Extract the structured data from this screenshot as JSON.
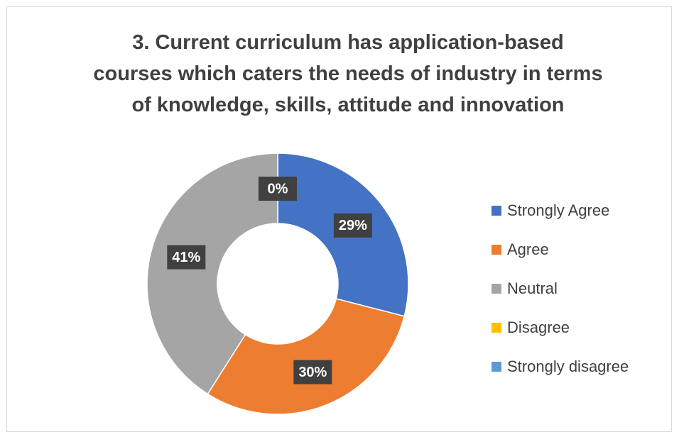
{
  "chart_data": {
    "type": "donut",
    "title": "3. Current curriculum has application-based courses which caters the needs of industry in terms of knowledge, skills, attitude and innovation",
    "categories": [
      "Strongly Agree",
      "Agree",
      "Neutral",
      "Disagree",
      "Strongly disagree"
    ],
    "values": [
      29,
      30,
      41,
      0,
      0
    ],
    "value_labels": [
      "29%",
      "30%",
      "41%",
      "0%",
      null
    ],
    "colors": [
      "#4472c4",
      "#ed7d31",
      "#a5a5a5",
      "#ffc000",
      "#5b9bd5"
    ],
    "legend": "right"
  }
}
